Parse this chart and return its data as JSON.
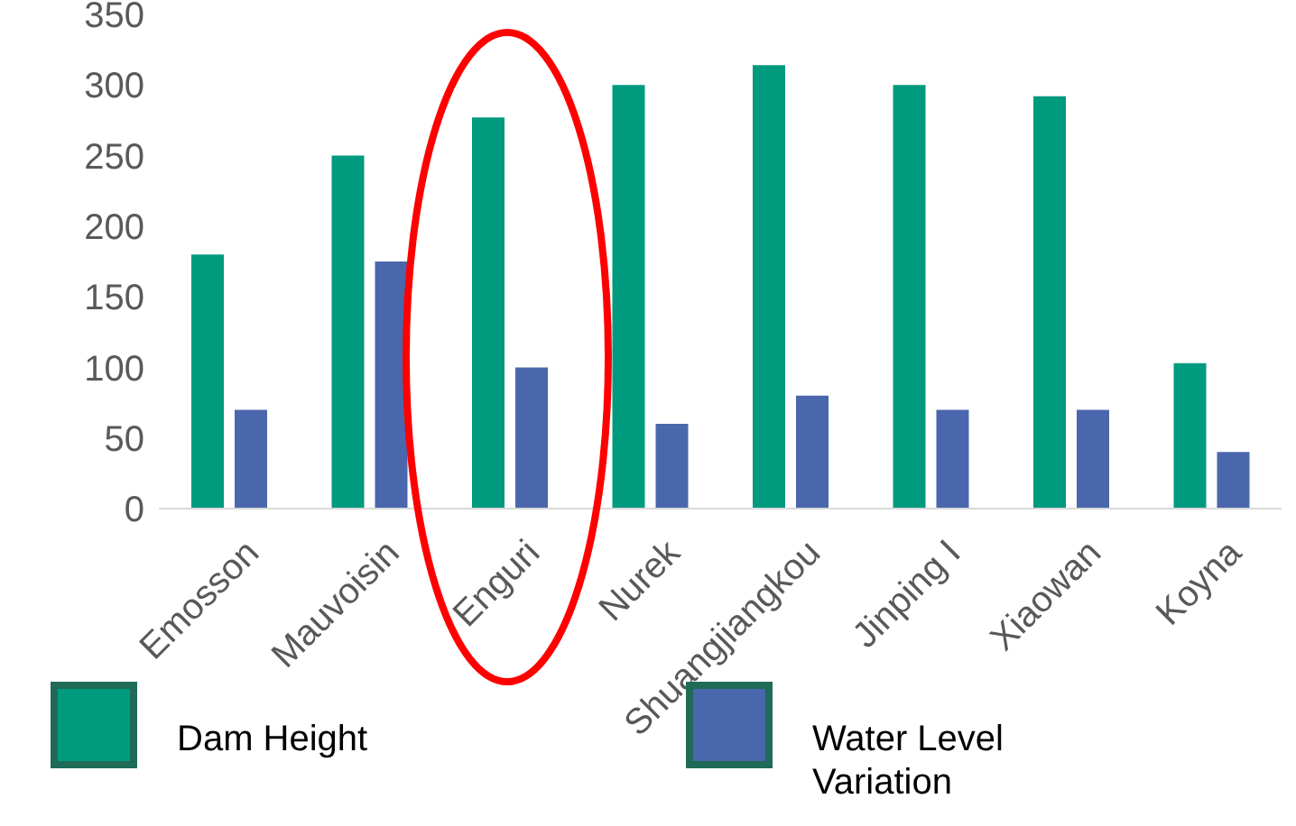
{
  "chart_data": {
    "type": "bar",
    "categories": [
      "Emosson",
      "Mauvoisin",
      "Enguri",
      "Nurek",
      "Shuangjiangkou",
      "Jinping I",
      "Xiaowan",
      "Koyna"
    ],
    "series": [
      {
        "name": "Dam Height",
        "color": "#009a7f",
        "values": [
          180,
          250,
          277,
          300,
          314,
          300,
          292,
          103
        ]
      },
      {
        "name": "Water Level Variation",
        "color": "#4a66ac",
        "values": [
          70,
          175,
          100,
          60,
          80,
          70,
          70,
          40
        ]
      }
    ],
    "ylim": [
      0,
      350
    ],
    "yticks": [
      0,
      50,
      100,
      150,
      200,
      250,
      300,
      350
    ],
    "legend": "bottom"
  }
}
